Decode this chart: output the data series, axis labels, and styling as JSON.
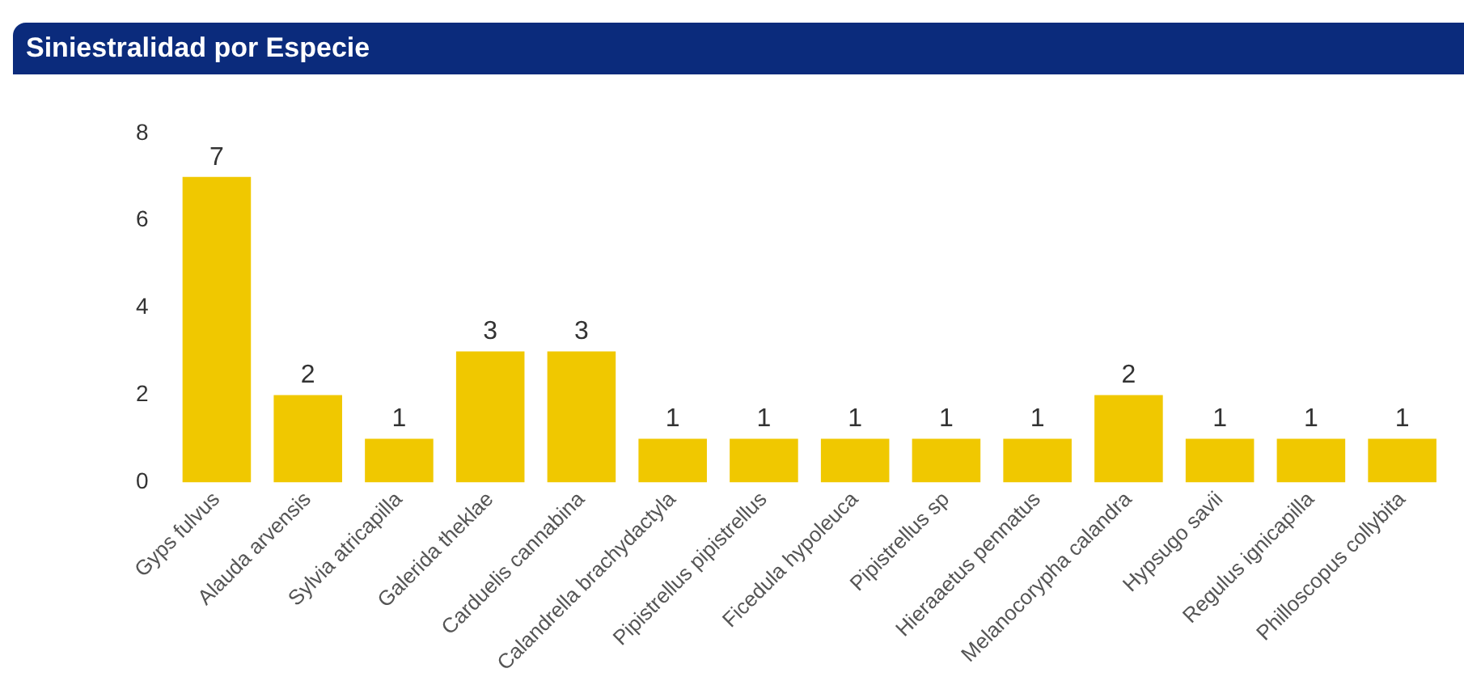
{
  "chart_data": {
    "type": "bar",
    "title": "Siniestralidad por Especie",
    "categories": [
      "Gyps fulvus",
      "Alauda arvensis",
      "Sylvia atricapilla",
      "Galerida theklae",
      "Carduelis cannabina",
      "Calandrella brachydactyla",
      "Pipistrellus pipistrellus",
      "Ficedula hypoleuca",
      "Pipistrellus sp",
      "Hieraaetus pennatus",
      "Melanocorypha calandra",
      "Hypsugo savii",
      "Regulus ignicapilla",
      "Philloscopus collybita"
    ],
    "values": [
      7,
      2,
      1,
      3,
      3,
      1,
      1,
      1,
      1,
      1,
      2,
      1,
      1,
      1
    ],
    "color": "#f0c800",
    "ylim": [
      0,
      8
    ],
    "yticks": [
      0,
      2,
      4,
      6,
      8
    ],
    "grid": false,
    "legend": false,
    "data_labels": true
  }
}
